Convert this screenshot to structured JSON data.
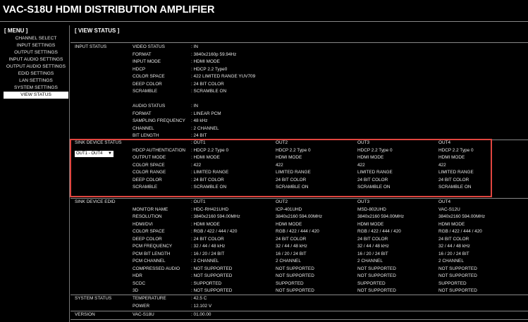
{
  "title": "VAC-S18U HDMI DISTRIBUTION AMPLIFIER",
  "menu": {
    "header": "[ MENU ]",
    "items": [
      "CHANNEL SELECT",
      "INPUT SETTINGS",
      "OUTPUT SETTINGS",
      "INPUT AUDIO SETTINGS",
      "OUTPUT AUDIO SETTINGS",
      "EDID SETTINGS",
      "LAN SETTINGS",
      "SYSTEM SETTINGS",
      "VIEW STATUS"
    ],
    "selected": "VIEW STATUS"
  },
  "page_title": "[ VIEW STATUS ]",
  "input_status": {
    "label": "INPUT STATUS",
    "rows": [
      [
        "VIDEO STATUS",
        ": IN"
      ],
      [
        "FORMAT",
        ": 3840x2160p 59.94Hz"
      ],
      [
        "INPUT MODE",
        ": HDMI MODE"
      ],
      [
        "HDCP",
        ": HDCP 2.2 Type0"
      ],
      [
        "COLOR SPACE",
        ": 422 LIMITED RANGE YUV709"
      ],
      [
        "DEEP COLOR",
        ": 24 BIT COLOR"
      ],
      [
        "SCRAMBLE",
        ": SCRAMBLE ON"
      ],
      [
        "",
        ""
      ],
      [
        "AUDIO STATUS",
        ": IN"
      ],
      [
        "FORMAT",
        ": LINEAR PCM"
      ],
      [
        "SAMPLING FREQUENCY",
        ": 48 kHz"
      ],
      [
        "CHANNEL",
        ": 2 CHANNEL"
      ],
      [
        "BIT LENGTH",
        ": 24 BIT"
      ]
    ]
  },
  "sink_status": {
    "label": "SINK DEVICE STATUS",
    "select_value": "OUT1 - OUT4",
    "rows": [
      [
        "",
        ": OUT1",
        "OUT2",
        "OUT3",
        "OUT4"
      ],
      [
        "HDCP AUTHENTICATION",
        ": HDCP 2.2 Type 0",
        "HDCP 2.2 Type 0",
        "HDCP 2.2 Type 0",
        "HDCP 2.2 Type 0"
      ],
      [
        "OUTPUT MODE",
        ": HDMI MODE",
        "HDMI MODE",
        "HDMI MODE",
        "HDMI MODE"
      ],
      [
        "COLOR SPACE",
        ": 422",
        "422",
        "422",
        "422"
      ],
      [
        "COLOR RANGE",
        ": LIMITED RANGE",
        "LIMITED RANGE",
        "LIMITED RANGE",
        "LIMITED RANGE"
      ],
      [
        "DEEP COLOR",
        ": 24 BIT COLOR",
        "24 BIT COLOR",
        "24 BIT COLOR",
        "24 BIT COLOR"
      ],
      [
        "SCRAMBLE",
        ": SCRAMBLE ON",
        "SCRAMBLE ON",
        "SCRAMBLE ON",
        "SCRAMBLE ON"
      ]
    ]
  },
  "sink_edid": {
    "label": "SINK DEVICE EDID",
    "rows": [
      [
        "",
        ": OUT1",
        "OUT2",
        "OUT3",
        "OUT4"
      ],
      [
        "MONITOR NAME",
        ": HDC-RH421UHD",
        "ICP-401UHD",
        "MSD-802UHD",
        "VAC-S12U"
      ],
      [
        "RESOLUTION",
        ": 3840x2160 594.00MHz",
        "3840x2160 594.00MHz",
        "3840x2160 594.00MHz",
        "3840x2160 594.00MHz"
      ],
      [
        "HDMI/DVI",
        ": HDMI MODE",
        "HDMI MODE",
        "HDMI MODE",
        "HDMI MODE"
      ],
      [
        "COLOR SPACE",
        ": RGB / 422 / 444 / 420",
        "RGB / 422 / 444 / 420",
        "RGB / 422 / 444 / 420",
        "RGB / 422 / 444 / 420"
      ],
      [
        "DEEP COLOR",
        ": 24 BIT COLOR",
        "24 BIT COLOR",
        "24 BIT COLOR",
        "24 BIT COLOR"
      ],
      [
        "PCM FREQUENCY",
        ": 32 / 44 / 48 kHz",
        "32 / 44 / 48 kHz",
        "32 / 44 / 48 kHz",
        "32 / 44 / 48 kHz"
      ],
      [
        "PCM BIT LENGTH",
        ": 16 / 20 / 24 BIT",
        "16 / 20 / 24 BIT",
        "16 / 20 / 24 BIT",
        "16 / 20 / 24 BIT"
      ],
      [
        "PCM CHANNEL",
        ": 2 CHANNEL",
        "2 CHANNEL",
        "2 CHANNEL",
        "2 CHANNEL"
      ],
      [
        "COMPRESSED AUDIO",
        ": NOT SUPPORTED",
        "NOT SUPPORTED",
        "NOT SUPPORTED",
        "NOT SUPPORTED"
      ],
      [
        "HDR",
        ": NOT SUPPORTED",
        "NOT SUPPORTED",
        "NOT SUPPORTED",
        "NOT SUPPORTED"
      ],
      [
        "SCDC",
        ": SUPPORTED",
        "SUPPORTED",
        "SUPPORTED",
        "SUPPORTED"
      ],
      [
        "3D",
        ": NOT SUPPORTED",
        "NOT SUPPORTED",
        "NOT SUPPORTED",
        "NOT SUPPORTED"
      ]
    ]
  },
  "system_status": {
    "label": "SYSTEM STATUS",
    "rows": [
      [
        "TEMPERATURE",
        ": 42.5 C"
      ],
      [
        "POWER",
        ": 12.102 V"
      ]
    ]
  },
  "version": {
    "label": "VERSION",
    "rows": [
      [
        "VAC-S18U",
        ": 01.00.00"
      ]
    ]
  },
  "colors": {
    "highlight_border": "#e0453f",
    "background": "#000000"
  }
}
